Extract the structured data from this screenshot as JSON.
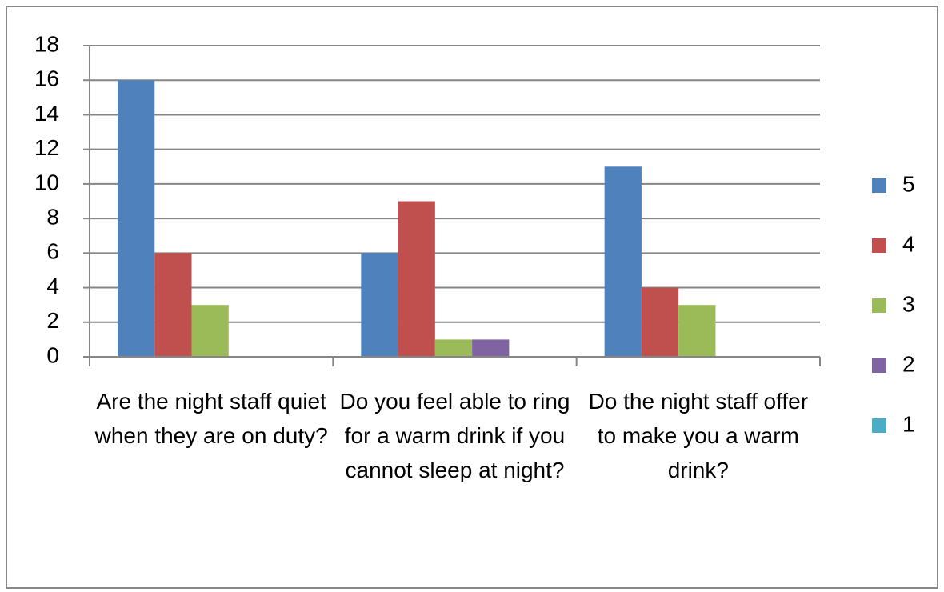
{
  "chart_data": {
    "type": "bar",
    "categories": [
      "Are the night staff quiet when they are on duty?",
      "Do you feel able to ring for a warm drink if you cannot sleep at night?",
      "Do the night staff offer to make you a warm drink?"
    ],
    "series": [
      {
        "name": "5",
        "color": "#4f81bd",
        "values": [
          16,
          6,
          11
        ]
      },
      {
        "name": "4",
        "color": "#c0504d",
        "values": [
          6,
          9,
          4
        ]
      },
      {
        "name": "3",
        "color": "#9bbb59",
        "values": [
          3,
          1,
          3
        ]
      },
      {
        "name": "2",
        "color": "#8064a2",
        "values": [
          0,
          1,
          0
        ]
      },
      {
        "name": "1",
        "color": "#4bacc6",
        "values": [
          0,
          0,
          0
        ]
      }
    ],
    "ylim": [
      0,
      18
    ],
    "yticks": [
      0,
      2,
      4,
      6,
      8,
      10,
      12,
      14,
      16,
      18
    ],
    "grid": true,
    "legend": "right"
  }
}
